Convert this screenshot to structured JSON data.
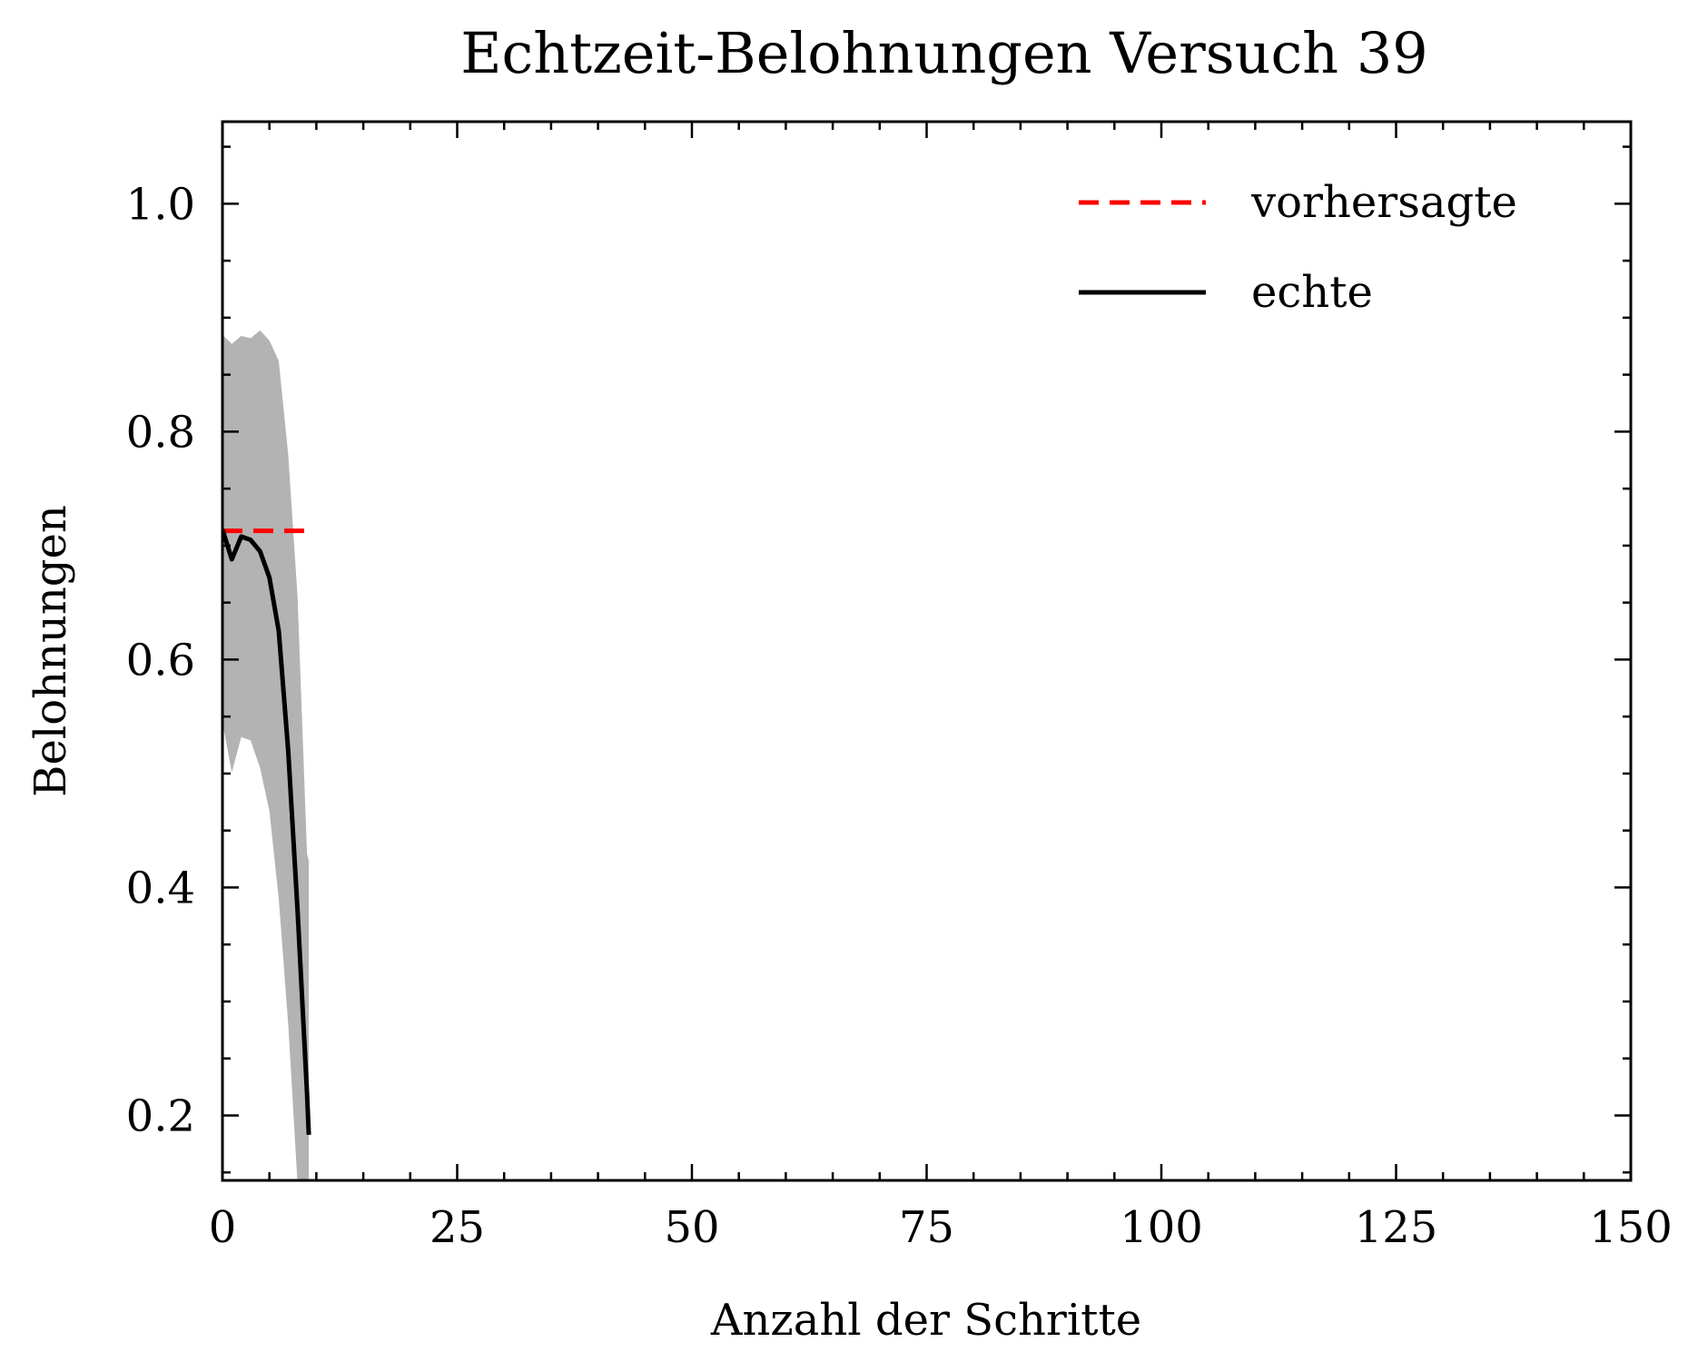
{
  "chart_data": {
    "type": "line",
    "title": "Echtzeit-Belohnungen Versuch 39",
    "xlabel": "Anzahl der Schritte",
    "ylabel": "Belohnungen",
    "xlim": [
      0,
      150
    ],
    "ylim": [
      0.143,
      1.072
    ],
    "xticks": [
      0,
      25,
      50,
      75,
      100,
      125,
      150
    ],
    "yticks": [
      0.2,
      0.4,
      0.6,
      0.8,
      1.0
    ],
    "xtick_labels": [
      "0",
      "25",
      "50",
      "75",
      "100",
      "125",
      "150"
    ],
    "ytick_labels": [
      "0.2",
      "0.4",
      "0.6",
      "0.8",
      "1.0"
    ],
    "grid": false,
    "legend_position": "top-right",
    "series": [
      {
        "name": "vorhersagte",
        "style": "dashed",
        "color": "#ff0000",
        "x": [
          0,
          9.2
        ],
        "y": [
          0.713,
          0.713
        ]
      },
      {
        "name": "echte",
        "style": "solid",
        "color": "#000000",
        "x": [
          0,
          1,
          2,
          3,
          4,
          5,
          6,
          7,
          8,
          9,
          9.2
        ],
        "y": [
          0.714,
          0.688,
          0.708,
          0.705,
          0.695,
          0.672,
          0.625,
          0.52,
          0.38,
          0.22,
          0.183
        ]
      }
    ],
    "band": {
      "color": "#b3b3b3",
      "x": [
        0,
        1,
        2,
        3,
        4,
        5,
        6,
        7,
        8,
        9,
        9.2
      ],
      "upper": [
        0.885,
        0.877,
        0.884,
        0.882,
        0.889,
        0.88,
        0.862,
        0.78,
        0.655,
        0.43,
        0.423
      ],
      "lower": [
        0.545,
        0.501,
        0.532,
        0.529,
        0.505,
        0.467,
        0.39,
        0.28,
        0.14,
        0.14,
        0.14
      ]
    }
  }
}
